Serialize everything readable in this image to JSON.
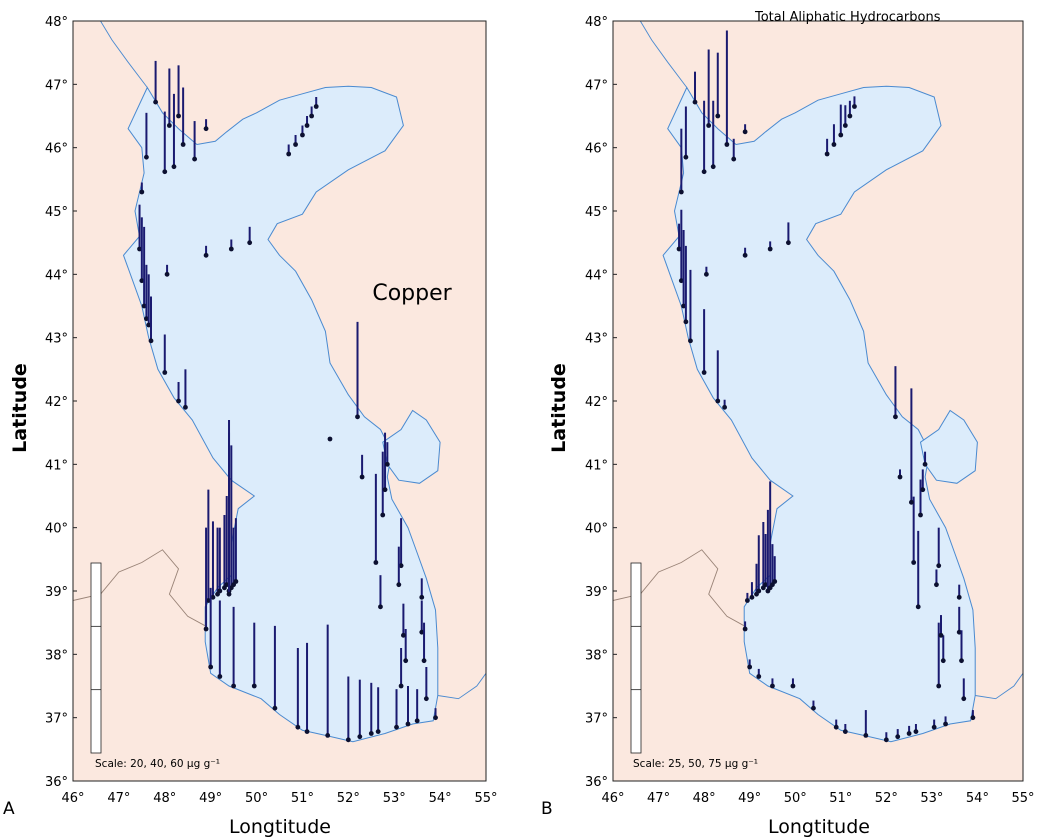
{
  "panels": [
    {
      "letter": "A",
      "variable_title": "Copper",
      "scale_text": "Scale: 20, 40, 60 μg g⁻¹",
      "xlabel": "Longtitude",
      "ylabel": "Latitude"
    },
    {
      "letter": "B",
      "variable_title": "Total Aliphatic Hydrocarbons",
      "scale_text": "Scale: 25, 50, 75 μg g⁻¹",
      "xlabel": "Longtitude",
      "ylabel": "Latitude"
    }
  ],
  "x_ticks": [
    "46°",
    "47°",
    "48°",
    "49°",
    "50°",
    "51°",
    "52°",
    "53°",
    "54°",
    "55°"
  ],
  "y_ticks": [
    "36°",
    "37°",
    "38°",
    "39°",
    "40°",
    "41°",
    "42°",
    "43°",
    "44°",
    "45°",
    "46°",
    "47°",
    "48°"
  ],
  "colors": {
    "land": "#fbe8df",
    "sea": "#dcecfb",
    "coastline": "#4a8ad0",
    "border": "#9a8478",
    "stick": "#1a1a70",
    "station": "#0c1030"
  },
  "chart_data": [
    {
      "type": "map-sticks",
      "title": "Copper",
      "xlabel": "Longtitude",
      "ylabel": "Latitude",
      "xlim": [
        46,
        55
      ],
      "ylim": [
        36,
        48
      ],
      "unit": "μg g⁻¹",
      "scale_values": [
        20,
        40,
        60
      ],
      "stations": [
        {
          "lon": 47.6,
          "lat": 45.85,
          "value": 14
        },
        {
          "lon": 47.8,
          "lat": 46.72,
          "value": 13
        },
        {
          "lon": 48.0,
          "lat": 45.62,
          "value": 19
        },
        {
          "lon": 48.1,
          "lat": 46.35,
          "value": 18
        },
        {
          "lon": 48.2,
          "lat": 45.7,
          "value": 23
        },
        {
          "lon": 48.3,
          "lat": 46.5,
          "value": 16
        },
        {
          "lon": 48.4,
          "lat": 46.05,
          "value": 18
        },
        {
          "lon": 48.65,
          "lat": 45.82,
          "value": 12
        },
        {
          "lon": 48.9,
          "lat": 46.3,
          "value": 3
        },
        {
          "lon": 47.5,
          "lat": 45.3,
          "value": 3
        },
        {
          "lon": 47.45,
          "lat": 44.4,
          "value": 14
        },
        {
          "lon": 47.5,
          "lat": 43.9,
          "value": 20
        },
        {
          "lon": 47.55,
          "lat": 43.5,
          "value": 25
        },
        {
          "lon": 47.6,
          "lat": 43.3,
          "value": 17
        },
        {
          "lon": 47.65,
          "lat": 43.2,
          "value": 16
        },
        {
          "lon": 47.7,
          "lat": 42.95,
          "value": 14
        },
        {
          "lon": 48.05,
          "lat": 44.0,
          "value": 3
        },
        {
          "lon": 48.9,
          "lat": 44.3,
          "value": 3
        },
        {
          "lon": 49.45,
          "lat": 44.4,
          "value": 3
        },
        {
          "lon": 49.85,
          "lat": 44.5,
          "value": 5
        },
        {
          "lon": 48.0,
          "lat": 42.45,
          "value": 12
        },
        {
          "lon": 48.3,
          "lat": 42.0,
          "value": 6
        },
        {
          "lon": 48.45,
          "lat": 41.9,
          "value": 12
        },
        {
          "lon": 50.7,
          "lat": 45.9,
          "value": 3
        },
        {
          "lon": 50.85,
          "lat": 46.05,
          "value": 3
        },
        {
          "lon": 51.0,
          "lat": 46.2,
          "value": 3
        },
        {
          "lon": 51.1,
          "lat": 46.35,
          "value": 3
        },
        {
          "lon": 51.2,
          "lat": 46.5,
          "value": 3
        },
        {
          "lon": 51.3,
          "lat": 46.65,
          "value": 3
        },
        {
          "lon": 48.95,
          "lat": 38.85,
          "value": 35
        },
        {
          "lon": 49.05,
          "lat": 38.9,
          "value": 24
        },
        {
          "lon": 49.15,
          "lat": 38.95,
          "value": 21
        },
        {
          "lon": 49.2,
          "lat": 39.0,
          "value": 20
        },
        {
          "lon": 49.3,
          "lat": 39.05,
          "value": 23
        },
        {
          "lon": 49.35,
          "lat": 39.1,
          "value": 28
        },
        {
          "lon": 49.4,
          "lat": 39.0,
          "value": 50
        },
        {
          "lon": 49.45,
          "lat": 39.05,
          "value": 45
        },
        {
          "lon": 49.5,
          "lat": 39.1,
          "value": 18
        },
        {
          "lon": 49.55,
          "lat": 39.15,
          "value": 20
        },
        {
          "lon": 49.4,
          "lat": 38.95,
          "value": 55
        },
        {
          "lon": 48.9,
          "lat": 38.4,
          "value": 32
        },
        {
          "lon": 49.0,
          "lat": 37.8,
          "value": 25
        },
        {
          "lon": 49.2,
          "lat": 37.65,
          "value": 24
        },
        {
          "lon": 49.5,
          "lat": 37.5,
          "value": 25
        },
        {
          "lon": 49.95,
          "lat": 37.5,
          "value": 20
        },
        {
          "lon": 50.4,
          "lat": 37.15,
          "value": 26
        },
        {
          "lon": 50.9,
          "lat": 36.85,
          "value": 25
        },
        {
          "lon": 51.1,
          "lat": 36.78,
          "value": 28
        },
        {
          "lon": 51.55,
          "lat": 36.72,
          "value": 35
        },
        {
          "lon": 52.0,
          "lat": 36.65,
          "value": 20
        },
        {
          "lon": 52.25,
          "lat": 36.7,
          "value": 18
        },
        {
          "lon": 52.5,
          "lat": 36.75,
          "value": 16
        },
        {
          "lon": 52.65,
          "lat": 36.78,
          "value": 14
        },
        {
          "lon": 53.05,
          "lat": 36.85,
          "value": 12
        },
        {
          "lon": 53.3,
          "lat": 36.9,
          "value": 12
        },
        {
          "lon": 53.5,
          "lat": 36.95,
          "value": 10
        },
        {
          "lon": 53.9,
          "lat": 37.0,
          "value": 3
        },
        {
          "lon": 53.15,
          "lat": 37.5,
          "value": 12
        },
        {
          "lon": 53.25,
          "lat": 37.9,
          "value": 10
        },
        {
          "lon": 53.2,
          "lat": 38.3,
          "value": 10
        },
        {
          "lon": 53.15,
          "lat": 39.4,
          "value": 15
        },
        {
          "lon": 53.1,
          "lat": 39.1,
          "value": 12
        },
        {
          "lon": 52.6,
          "lat": 39.45,
          "value": 28
        },
        {
          "lon": 52.75,
          "lat": 40.2,
          "value": 20
        },
        {
          "lon": 52.8,
          "lat": 40.6,
          "value": 18
        },
        {
          "lon": 52.85,
          "lat": 41.0,
          "value": 7
        },
        {
          "lon": 52.3,
          "lat": 40.8,
          "value": 7
        },
        {
          "lon": 52.2,
          "lat": 41.75,
          "value": 30
        },
        {
          "lon": 52.7,
          "lat": 38.75,
          "value": 10
        },
        {
          "lon": 53.6,
          "lat": 38.35,
          "value": 10
        },
        {
          "lon": 53.65,
          "lat": 37.9,
          "value": 12
        },
        {
          "lon": 53.7,
          "lat": 37.3,
          "value": 10
        },
        {
          "lon": 53.6,
          "lat": 38.9,
          "value": 6
        },
        {
          "lon": 51.6,
          "lat": 41.4,
          "value": 0
        }
      ]
    },
    {
      "type": "map-sticks",
      "title": "Total Aliphatic Hydrocarbons",
      "xlabel": "Longtitude",
      "ylabel": "Latitude",
      "xlim": [
        46,
        55
      ],
      "ylim": [
        36,
        48
      ],
      "unit": "μg g⁻¹",
      "scale_values": [
        25,
        50,
        75
      ],
      "stations": [
        {
          "lon": 47.6,
          "lat": 45.85,
          "value": 20
        },
        {
          "lon": 47.8,
          "lat": 46.72,
          "value": 12
        },
        {
          "lon": 48.0,
          "lat": 45.62,
          "value": 28
        },
        {
          "lon": 48.1,
          "lat": 46.35,
          "value": 30
        },
        {
          "lon": 48.2,
          "lat": 45.7,
          "value": 26
        },
        {
          "lon": 48.3,
          "lat": 46.5,
          "value": 25
        },
        {
          "lon": 48.5,
          "lat": 46.05,
          "value": 45
        },
        {
          "lon": 48.65,
          "lat": 45.82,
          "value": 8
        },
        {
          "lon": 48.9,
          "lat": 46.25,
          "value": 3
        },
        {
          "lon": 47.5,
          "lat": 45.3,
          "value": 25
        },
        {
          "lon": 47.45,
          "lat": 44.4,
          "value": 10
        },
        {
          "lon": 47.5,
          "lat": 43.9,
          "value": 28
        },
        {
          "lon": 47.55,
          "lat": 43.5,
          "value": 30
        },
        {
          "lon": 47.6,
          "lat": 43.25,
          "value": 30
        },
        {
          "lon": 47.7,
          "lat": 42.95,
          "value": 28
        },
        {
          "lon": 48.05,
          "lat": 44.0,
          "value": 3
        },
        {
          "lon": 48.9,
          "lat": 44.3,
          "value": 3
        },
        {
          "lon": 49.45,
          "lat": 44.4,
          "value": 3
        },
        {
          "lon": 49.85,
          "lat": 44.5,
          "value": 8
        },
        {
          "lon": 48.0,
          "lat": 42.45,
          "value": 25
        },
        {
          "lon": 48.3,
          "lat": 42.0,
          "value": 20
        },
        {
          "lon": 48.45,
          "lat": 41.9,
          "value": 3
        },
        {
          "lon": 50.7,
          "lat": 45.9,
          "value": 6
        },
        {
          "lon": 50.85,
          "lat": 46.05,
          "value": 8
        },
        {
          "lon": 51.0,
          "lat": 46.2,
          "value": 12
        },
        {
          "lon": 51.1,
          "lat": 46.35,
          "value": 8
        },
        {
          "lon": 51.2,
          "lat": 46.5,
          "value": 6
        },
        {
          "lon": 51.3,
          "lat": 46.65,
          "value": 4
        },
        {
          "lon": 48.95,
          "lat": 38.85,
          "value": 3
        },
        {
          "lon": 49.05,
          "lat": 38.9,
          "value": 6
        },
        {
          "lon": 49.15,
          "lat": 38.95,
          "value": 12
        },
        {
          "lon": 49.2,
          "lat": 39.0,
          "value": 22
        },
        {
          "lon": 49.3,
          "lat": 39.05,
          "value": 26
        },
        {
          "lon": 49.35,
          "lat": 39.1,
          "value": 20
        },
        {
          "lon": 49.4,
          "lat": 39.0,
          "value": 32
        },
        {
          "lon": 49.45,
          "lat": 39.05,
          "value": 42
        },
        {
          "lon": 49.5,
          "lat": 39.1,
          "value": 16
        },
        {
          "lon": 49.55,
          "lat": 39.15,
          "value": 10
        },
        {
          "lon": 48.9,
          "lat": 38.4,
          "value": 3
        },
        {
          "lon": 49.0,
          "lat": 37.8,
          "value": 3
        },
        {
          "lon": 49.2,
          "lat": 37.65,
          "value": 3
        },
        {
          "lon": 49.5,
          "lat": 37.5,
          "value": 3
        },
        {
          "lon": 49.95,
          "lat": 37.5,
          "value": 3
        },
        {
          "lon": 50.4,
          "lat": 37.15,
          "value": 3
        },
        {
          "lon": 50.9,
          "lat": 36.85,
          "value": 3
        },
        {
          "lon": 51.1,
          "lat": 36.78,
          "value": 3
        },
        {
          "lon": 51.55,
          "lat": 36.72,
          "value": 10
        },
        {
          "lon": 52.0,
          "lat": 36.65,
          "value": 3
        },
        {
          "lon": 52.25,
          "lat": 36.7,
          "value": 3
        },
        {
          "lon": 52.5,
          "lat": 36.75,
          "value": 3
        },
        {
          "lon": 52.65,
          "lat": 36.78,
          "value": 3
        },
        {
          "lon": 53.05,
          "lat": 36.85,
          "value": 3
        },
        {
          "lon": 53.3,
          "lat": 36.9,
          "value": 3
        },
        {
          "lon": 53.9,
          "lat": 37.0,
          "value": 3
        },
        {
          "lon": 53.15,
          "lat": 37.5,
          "value": 25
        },
        {
          "lon": 53.25,
          "lat": 37.9,
          "value": 10
        },
        {
          "lon": 53.2,
          "lat": 38.3,
          "value": 8
        },
        {
          "lon": 53.15,
          "lat": 39.4,
          "value": 15
        },
        {
          "lon": 53.1,
          "lat": 39.1,
          "value": 6
        },
        {
          "lon": 52.6,
          "lat": 39.45,
          "value": 26
        },
        {
          "lon": 52.75,
          "lat": 40.2,
          "value": 14
        },
        {
          "lon": 52.8,
          "lat": 40.6,
          "value": 8
        },
        {
          "lon": 52.85,
          "lat": 41.0,
          "value": 5
        },
        {
          "lon": 52.3,
          "lat": 40.8,
          "value": 3
        },
        {
          "lon": 52.2,
          "lat": 41.75,
          "value": 20
        },
        {
          "lon": 52.7,
          "lat": 38.75,
          "value": 30
        },
        {
          "lon": 52.55,
          "lat": 40.4,
          "value": 45
        },
        {
          "lon": 53.6,
          "lat": 38.35,
          "value": 10
        },
        {
          "lon": 53.65,
          "lat": 37.9,
          "value": 12
        },
        {
          "lon": 53.7,
          "lat": 37.3,
          "value": 8
        },
        {
          "lon": 53.6,
          "lat": 38.9,
          "value": 5
        }
      ]
    }
  ]
}
